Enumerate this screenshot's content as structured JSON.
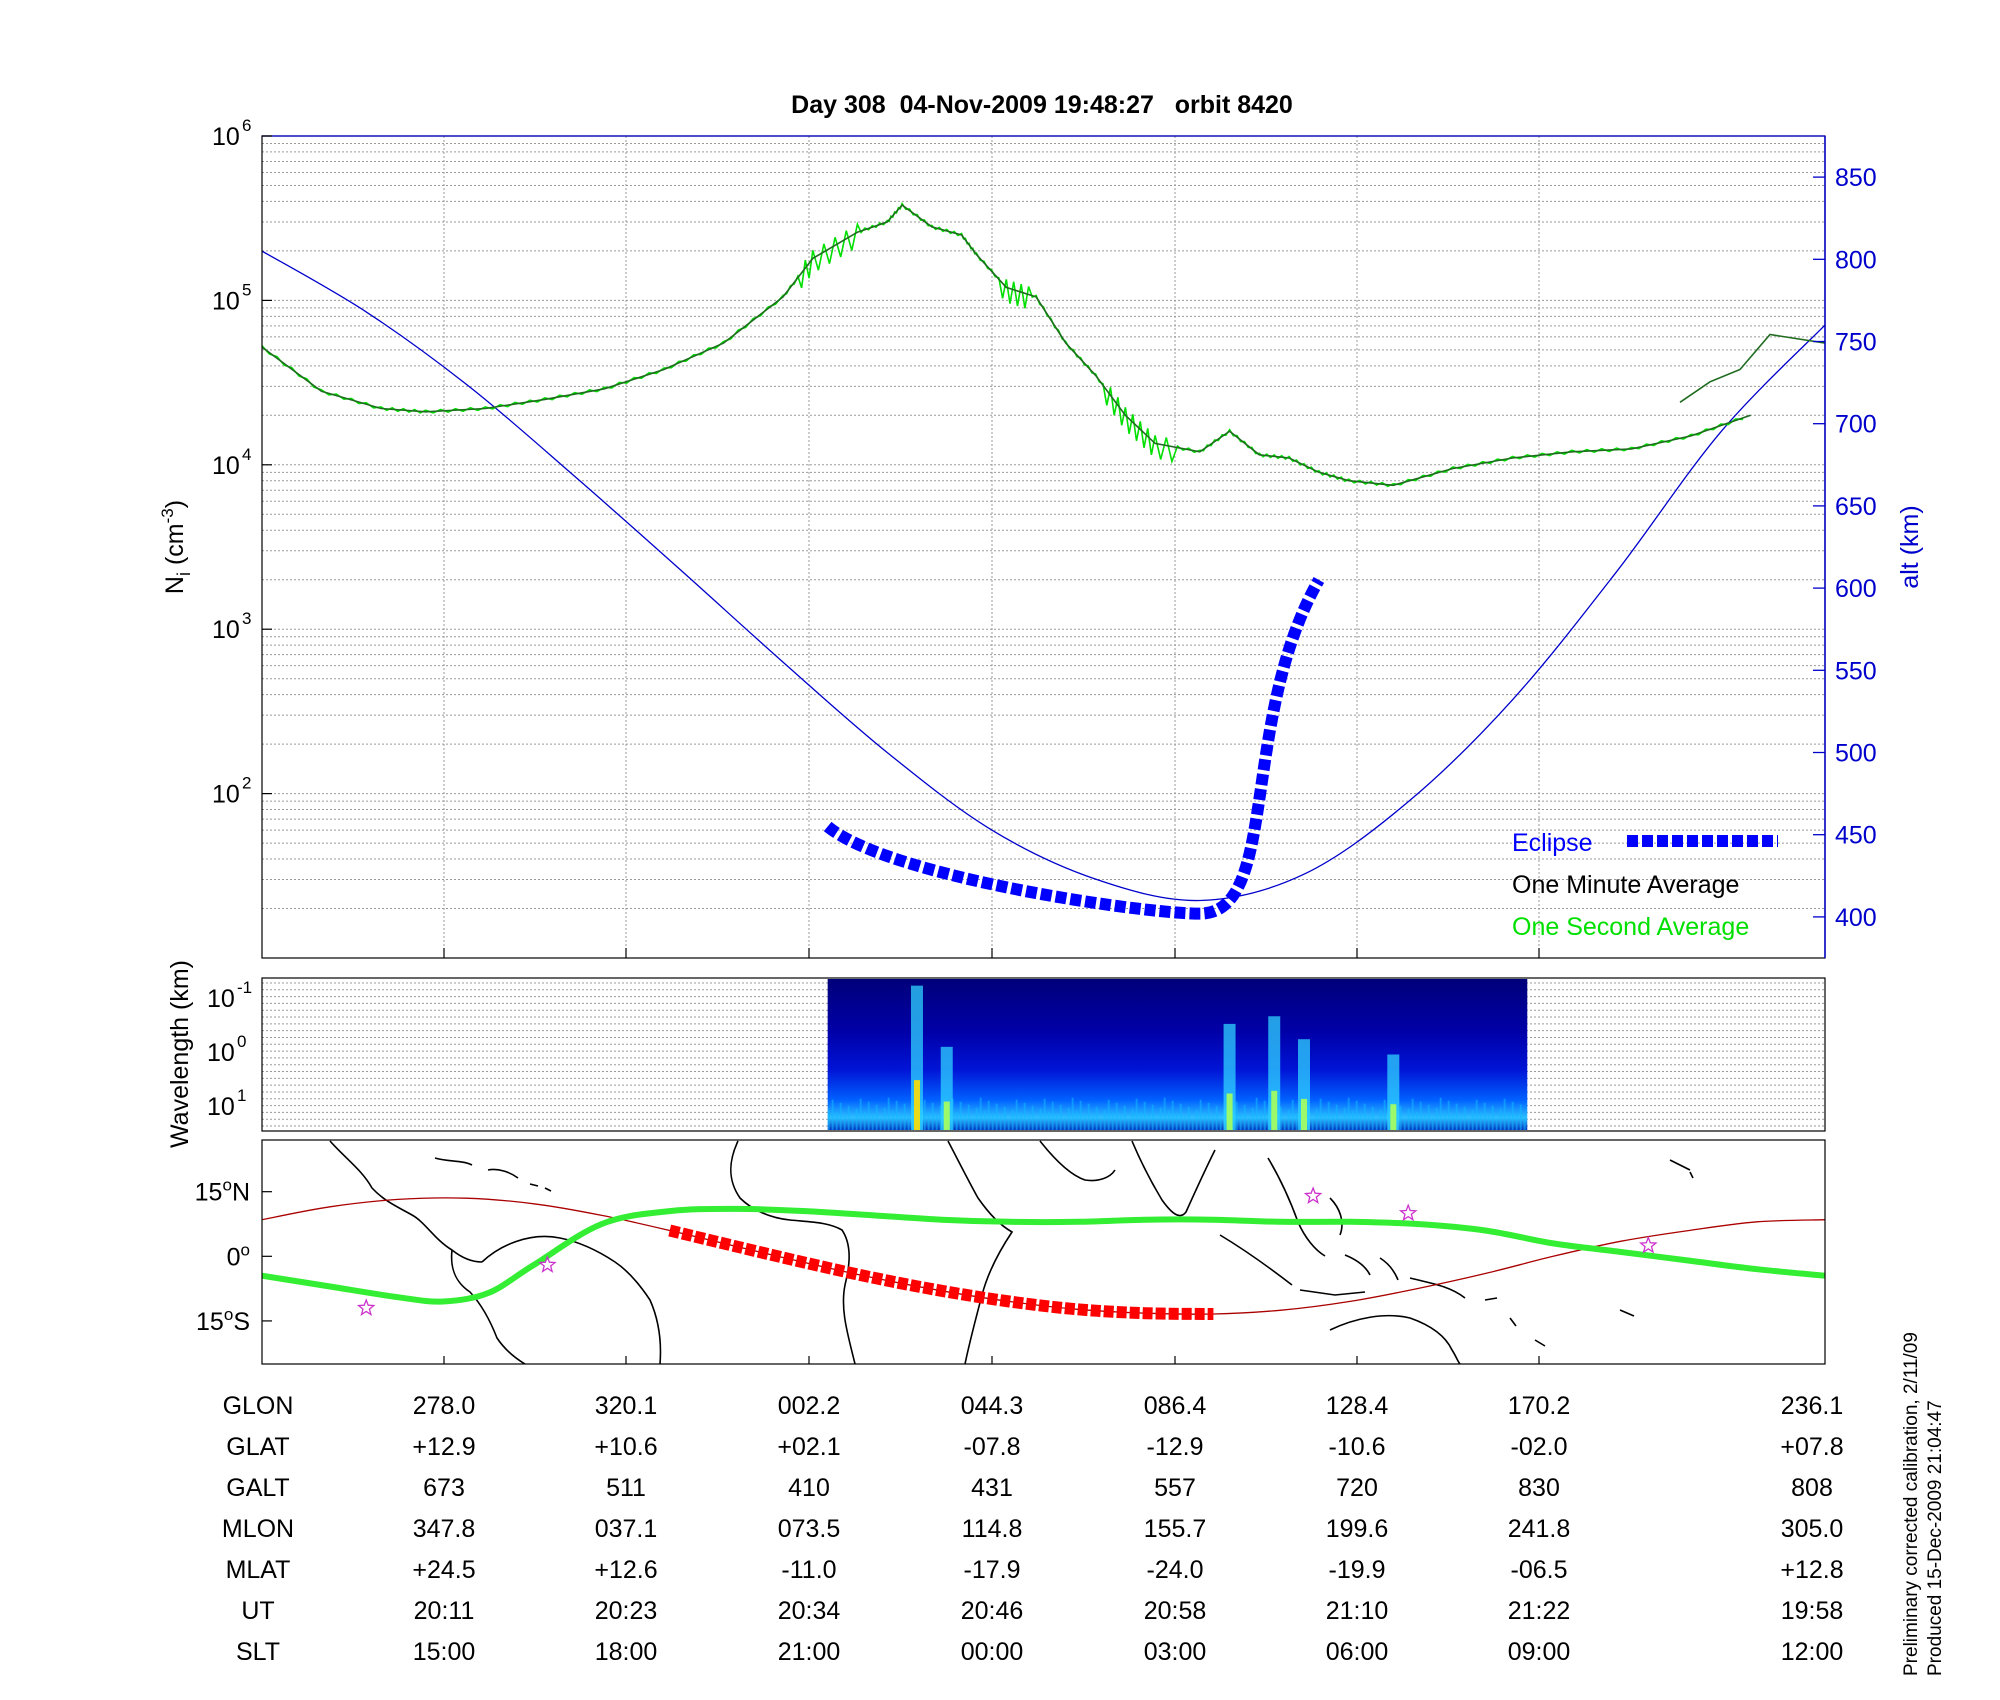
{
  "title": "Day 308  04-Nov-2009 19:48:27   orbit 8420",
  "colors": {
    "altitude": "#0000cc",
    "eclipse": "#0000ff",
    "one_minute": "#000000",
    "one_second": "#00e000",
    "one_minute_green": "#1f6b1f",
    "track": "#aa0000",
    "eclipse_track": "#ff0000",
    "magnetic_equator": "#33ee33",
    "star": "#cc33cc"
  },
  "chart_data": [
    {
      "type": "line",
      "panel": "density",
      "ylabel_left": "N",
      "ylabel_left_sub": "i",
      "ylabel_left_unit": "(cm",
      "ylabel_left_unit_sup": "-3",
      "ylabel_left_unit_close": ")",
      "ylabel_right": "alt (km)",
      "yscale_left": "log",
      "ylim_left": [
        10,
        1000000
      ],
      "yticks_left": [
        {
          "base": "10",
          "exp": "2",
          "value": 100
        },
        {
          "base": "10",
          "exp": "3",
          "value": 1000
        },
        {
          "base": "10",
          "exp": "4",
          "value": 10000
        },
        {
          "base": "10",
          "exp": "5",
          "value": 100000
        },
        {
          "base": "10",
          "exp": "6",
          "value": 1000000
        }
      ],
      "ylim_right": [
        375,
        875
      ],
      "yticks_right": [
        "400",
        "450",
        "500",
        "550",
        "600",
        "650",
        "700",
        "750",
        "800",
        "850"
      ],
      "grid": true,
      "legend": {
        "placement": "bottom-right",
        "entries": [
          {
            "label": "Eclipse",
            "color": "#0000ff",
            "style": "thick-dashed"
          },
          {
            "label": "One Minute Average",
            "color": "#000000",
            "style": "none"
          },
          {
            "label": "One Second Average",
            "color": "#00e000",
            "style": "none"
          }
        ]
      },
      "series": [
        {
          "name": "One Minute Average",
          "x_ut": [
            "19:48",
            "19:52",
            "19:56",
            "19:59",
            "20:03",
            "20:07",
            "20:11",
            "20:15",
            "20:19",
            "20:23",
            "20:25",
            "20:28",
            "20:30",
            "20:31",
            "20:33",
            "20:35",
            "20:36",
            "20:38",
            "20:40",
            "20:42",
            "20:44",
            "20:46",
            "20:48",
            "20:51",
            "20:53",
            "20:55",
            "20:57",
            "20:59",
            "21:01",
            "21:04",
            "21:08",
            "21:12",
            "21:16",
            "21:20",
            "21:24",
            "21:28"
          ],
          "values": [
            52000,
            28000,
            22000,
            21000,
            22000,
            25000,
            29000,
            38000,
            55000,
            105000,
            180000,
            260000,
            300000,
            380000,
            280000,
            250000,
            190000,
            120000,
            105000,
            55000,
            35000,
            20000,
            13500,
            12000,
            16000,
            11500,
            11000,
            9000,
            8000,
            7500,
            9500,
            11000,
            12000,
            12500,
            15000,
            20000
          ]
        },
        {
          "name": "One Minute Average (after gap)",
          "x_ut": [
            "19:58",
            "20:00",
            "20:02",
            "20:04",
            "20:06"
          ],
          "values": [
            24000,
            32000,
            38000,
            62000,
            55000
          ]
        },
        {
          "name": "Altitude",
          "x_ut": [
            "19:48",
            "19:55",
            "20:02",
            "20:09",
            "20:16",
            "20:23",
            "20:30",
            "20:37",
            "20:44",
            "20:51",
            "20:58",
            "21:05",
            "21:12",
            "21:19",
            "21:26",
            "21:33"
          ],
          "values": [
            805,
            768,
            722,
            668,
            612,
            555,
            500,
            453,
            423,
            410,
            426,
            470,
            532,
            610,
            695,
            760
          ]
        }
      ],
      "eclipse_segment": {
        "x_ut_start": "20:26",
        "x_ut_end": "20:59",
        "alt_start": 455,
        "alt_min": 402,
        "alt_end": 605
      }
    },
    {
      "type": "heatmap",
      "panel": "spectrogram",
      "ylabel": "Wavelength (km)",
      "yticks": [
        {
          "base": "10",
          "exp": "-1"
        },
        {
          "base": "10",
          "exp": "0"
        },
        {
          "base": "10",
          "exp": "1"
        }
      ],
      "x_ut_start": "20:26",
      "x_ut_end": "21:13",
      "colormap": "jet",
      "bursts": [
        {
          "ut": "20:32",
          "intensity": 0.95
        },
        {
          "ut": "20:34",
          "intensity": 0.55
        },
        {
          "ut": "20:53",
          "intensity": 0.7
        },
        {
          "ut": "20:56",
          "intensity": 0.75
        },
        {
          "ut": "20:58",
          "intensity": 0.6
        },
        {
          "ut": "21:04",
          "intensity": 0.5
        }
      ]
    },
    {
      "type": "map",
      "panel": "track",
      "yticks": [
        {
          "label": "15",
          "sup": "o",
          "suffix": "N",
          "value": 15
        },
        {
          "label": "0",
          "sup": "o",
          "suffix": "",
          "value": 0
        },
        {
          "label": "15",
          "sup": "o",
          "suffix": "S",
          "value": -15
        }
      ],
      "satellite_track": {
        "glon": [
          255,
          270,
          285,
          300,
          315,
          330,
          345,
          360,
          375,
          390,
          405,
          420,
          435,
          450,
          465,
          480,
          495,
          510,
          525,
          540,
          555,
          570,
          585,
          600
        ],
        "glat": [
          8.5,
          11.5,
          13.2,
          13.5,
          12.2,
          9.5,
          6,
          2.2,
          -1.5,
          -5,
          -8,
          -10.5,
          -12.3,
          -13.2,
          -13.4,
          -12.5,
          -10.5,
          -7.5,
          -4,
          0,
          3.5,
          6,
          8,
          8.5
        ]
      },
      "magnetic_equator": {
        "glon": [
          255,
          270,
          285,
          295,
          305,
          315,
          330,
          345,
          360,
          375,
          390,
          405,
          420,
          435,
          450,
          465,
          480,
          495,
          510,
          525,
          540,
          555,
          570,
          585,
          600
        ],
        "glat": [
          -4.5,
          -7,
          -9.5,
          -10.5,
          -8.5,
          -2,
          7.5,
          10.5,
          11,
          10.5,
          9.5,
          8.5,
          8,
          8,
          8.5,
          8.5,
          8,
          8,
          7.5,
          6,
          3,
          1,
          -1,
          -3,
          -4.5
        ]
      },
      "stars": [
        {
          "glon": 278,
          "glat": -12
        },
        {
          "glon": 318,
          "glat": -2
        },
        {
          "glon": 487,
          "glat": 14
        },
        {
          "glon": 508,
          "glat": 10
        },
        {
          "glon": 561,
          "glat": 2.5
        }
      ]
    }
  ],
  "table": {
    "rows": [
      {
        "label": "GLON",
        "values": [
          "278.0",
          "320.1",
          "002.2",
          "044.3",
          "086.4",
          "128.4",
          "170.2",
          "236.1"
        ]
      },
      {
        "label": "GLAT",
        "values": [
          "+12.9",
          "+10.6",
          "+02.1",
          "-07.8",
          "-12.9",
          "-10.6",
          "-02.0",
          "+07.8"
        ]
      },
      {
        "label": "GALT",
        "values": [
          "673",
          "511",
          "410",
          "431",
          "557",
          "720",
          "830",
          "808"
        ]
      },
      {
        "label": "MLON",
        "values": [
          "347.8",
          "037.1",
          "073.5",
          "114.8",
          "155.7",
          "199.6",
          "241.8",
          "305.0"
        ]
      },
      {
        "label": "MLAT",
        "values": [
          "+24.5",
          "+12.6",
          "-11.0",
          "-17.9",
          "-24.0",
          "-19.9",
          "-06.5",
          "+12.8"
        ]
      },
      {
        "label": "UT",
        "values": [
          "20:11",
          "20:23",
          "20:34",
          "20:46",
          "20:58",
          "21:10",
          "21:22",
          "19:58"
        ]
      },
      {
        "label": "SLT",
        "values": [
          "15:00",
          "18:00",
          "21:00",
          "00:00",
          "03:00",
          "06:00",
          "09:00",
          "12:00"
        ]
      }
    ]
  },
  "footnote": {
    "line1": "Preliminary corrected calibration, 2/11/09",
    "line2": "Produced 15-Dec-2009 21:04:47"
  }
}
